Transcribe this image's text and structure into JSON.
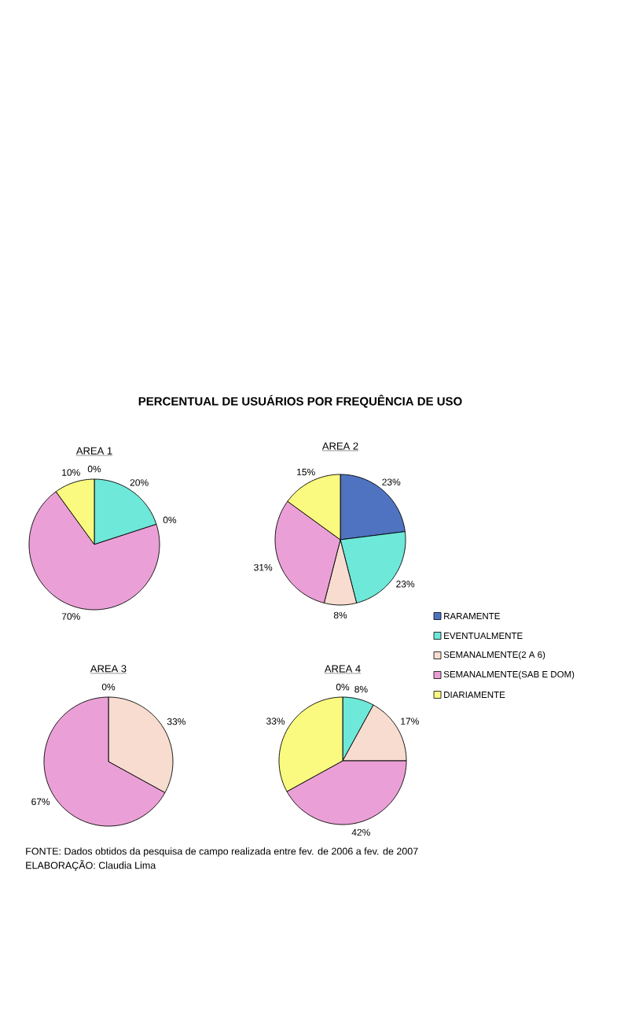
{
  "chart_data": [
    {
      "type": "pie",
      "subtitle": "AREA 1",
      "legend": false,
      "categories": [
        null,
        null,
        null,
        null,
        null
      ],
      "values": [
        0,
        20,
        0,
        70,
        10
      ],
      "value_labels": [
        "0%",
        "20%",
        "0%",
        "70%",
        "10%"
      ],
      "colors": [
        "#4f73c0",
        "#6ee8d8",
        "#f7dccf",
        "#eaa0d6",
        "#fafa80"
      ]
    },
    {
      "type": "pie",
      "title": "PERCENTUAL DE USUÁRIOS POR FREQUÊNCIA DE USO",
      "subtitle": "AREA 2",
      "legend": "bottom right",
      "categories": [
        "RARAMENTE",
        "EVENTUALMENTE",
        "SEMANALMENTE(2 A 6)",
        "SEMANALMENTE(SAB E DOM)",
        "DIARIAMENTE"
      ],
      "values": [
        23,
        23,
        8,
        31,
        15
      ],
      "value_labels": [
        "23%",
        "23%",
        "8%",
        "31%",
        "15%"
      ],
      "colors": [
        "#4f73c0",
        "#6ee8d8",
        "#f7dccf",
        "#eaa0d6",
        "#fafa80"
      ]
    },
    {
      "type": "pie",
      "subtitle": "AREA 3",
      "legend": false,
      "categories": [
        null,
        null,
        null,
        null,
        null
      ],
      "values": [
        0,
        0,
        33,
        67,
        0
      ],
      "value_labels": [
        "0%",
        null,
        "33%",
        "67%",
        null
      ],
      "colors": [
        "#4f73c0",
        "#6ee8d8",
        "#f7dccf",
        "#eaa0d6",
        "#fafa80"
      ]
    },
    {
      "type": "pie",
      "subtitle": "AREA 4",
      "legend": false,
      "categories": [
        null,
        null,
        null,
        null,
        null
      ],
      "values": [
        0,
        8,
        17,
        42,
        33
      ],
      "value_labels": [
        "0%",
        "8%",
        "17%",
        "42%",
        "33%"
      ],
      "colors": [
        "#4f73c0",
        "#6ee8d8",
        "#f7dccf",
        "#eaa0d6",
        "#fafa80"
      ],
      "annotations": [
        "FONTE: Dados obtidos da pesquisa de campo realizada entre fev. de 2006 a fev. de 2007",
        "ELABORAÇÃO: Claudia Lima"
      ]
    }
  ]
}
